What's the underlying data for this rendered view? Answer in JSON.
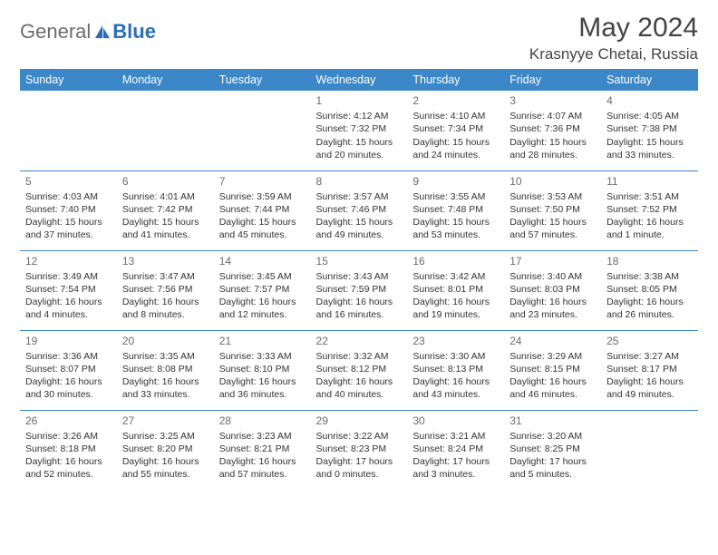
{
  "logo": {
    "part1": "General",
    "part2": "Blue"
  },
  "title": "May 2024",
  "location": "Krasnyye Chetai, Russia",
  "colors": {
    "header_bg": "#3b87c8",
    "header_text": "#ffffff",
    "rule": "#3b87c8",
    "text": "#333333",
    "daynum": "#6b6b6b",
    "logo_gray": "#6d6d6d",
    "logo_blue": "#2a6fb5"
  },
  "weekdays": [
    "Sunday",
    "Monday",
    "Tuesday",
    "Wednesday",
    "Thursday",
    "Friday",
    "Saturday"
  ],
  "weeks": [
    [
      null,
      null,
      null,
      {
        "n": "1",
        "sr": "4:12 AM",
        "ss": "7:32 PM",
        "dl": "15 hours and 20 minutes."
      },
      {
        "n": "2",
        "sr": "4:10 AM",
        "ss": "7:34 PM",
        "dl": "15 hours and 24 minutes."
      },
      {
        "n": "3",
        "sr": "4:07 AM",
        "ss": "7:36 PM",
        "dl": "15 hours and 28 minutes."
      },
      {
        "n": "4",
        "sr": "4:05 AM",
        "ss": "7:38 PM",
        "dl": "15 hours and 33 minutes."
      }
    ],
    [
      {
        "n": "5",
        "sr": "4:03 AM",
        "ss": "7:40 PM",
        "dl": "15 hours and 37 minutes."
      },
      {
        "n": "6",
        "sr": "4:01 AM",
        "ss": "7:42 PM",
        "dl": "15 hours and 41 minutes."
      },
      {
        "n": "7",
        "sr": "3:59 AM",
        "ss": "7:44 PM",
        "dl": "15 hours and 45 minutes."
      },
      {
        "n": "8",
        "sr": "3:57 AM",
        "ss": "7:46 PM",
        "dl": "15 hours and 49 minutes."
      },
      {
        "n": "9",
        "sr": "3:55 AM",
        "ss": "7:48 PM",
        "dl": "15 hours and 53 minutes."
      },
      {
        "n": "10",
        "sr": "3:53 AM",
        "ss": "7:50 PM",
        "dl": "15 hours and 57 minutes."
      },
      {
        "n": "11",
        "sr": "3:51 AM",
        "ss": "7:52 PM",
        "dl": "16 hours and 1 minute."
      }
    ],
    [
      {
        "n": "12",
        "sr": "3:49 AM",
        "ss": "7:54 PM",
        "dl": "16 hours and 4 minutes."
      },
      {
        "n": "13",
        "sr": "3:47 AM",
        "ss": "7:56 PM",
        "dl": "16 hours and 8 minutes."
      },
      {
        "n": "14",
        "sr": "3:45 AM",
        "ss": "7:57 PM",
        "dl": "16 hours and 12 minutes."
      },
      {
        "n": "15",
        "sr": "3:43 AM",
        "ss": "7:59 PM",
        "dl": "16 hours and 16 minutes."
      },
      {
        "n": "16",
        "sr": "3:42 AM",
        "ss": "8:01 PM",
        "dl": "16 hours and 19 minutes."
      },
      {
        "n": "17",
        "sr": "3:40 AM",
        "ss": "8:03 PM",
        "dl": "16 hours and 23 minutes."
      },
      {
        "n": "18",
        "sr": "3:38 AM",
        "ss": "8:05 PM",
        "dl": "16 hours and 26 minutes."
      }
    ],
    [
      {
        "n": "19",
        "sr": "3:36 AM",
        "ss": "8:07 PM",
        "dl": "16 hours and 30 minutes."
      },
      {
        "n": "20",
        "sr": "3:35 AM",
        "ss": "8:08 PM",
        "dl": "16 hours and 33 minutes."
      },
      {
        "n": "21",
        "sr": "3:33 AM",
        "ss": "8:10 PM",
        "dl": "16 hours and 36 minutes."
      },
      {
        "n": "22",
        "sr": "3:32 AM",
        "ss": "8:12 PM",
        "dl": "16 hours and 40 minutes."
      },
      {
        "n": "23",
        "sr": "3:30 AM",
        "ss": "8:13 PM",
        "dl": "16 hours and 43 minutes."
      },
      {
        "n": "24",
        "sr": "3:29 AM",
        "ss": "8:15 PM",
        "dl": "16 hours and 46 minutes."
      },
      {
        "n": "25",
        "sr": "3:27 AM",
        "ss": "8:17 PM",
        "dl": "16 hours and 49 minutes."
      }
    ],
    [
      {
        "n": "26",
        "sr": "3:26 AM",
        "ss": "8:18 PM",
        "dl": "16 hours and 52 minutes."
      },
      {
        "n": "27",
        "sr": "3:25 AM",
        "ss": "8:20 PM",
        "dl": "16 hours and 55 minutes."
      },
      {
        "n": "28",
        "sr": "3:23 AM",
        "ss": "8:21 PM",
        "dl": "16 hours and 57 minutes."
      },
      {
        "n": "29",
        "sr": "3:22 AM",
        "ss": "8:23 PM",
        "dl": "17 hours and 0 minutes."
      },
      {
        "n": "30",
        "sr": "3:21 AM",
        "ss": "8:24 PM",
        "dl": "17 hours and 3 minutes."
      },
      {
        "n": "31",
        "sr": "3:20 AM",
        "ss": "8:25 PM",
        "dl": "17 hours and 5 minutes."
      },
      null
    ]
  ],
  "labels": {
    "sunrise": "Sunrise:",
    "sunset": "Sunset:",
    "daylight": "Daylight:"
  }
}
